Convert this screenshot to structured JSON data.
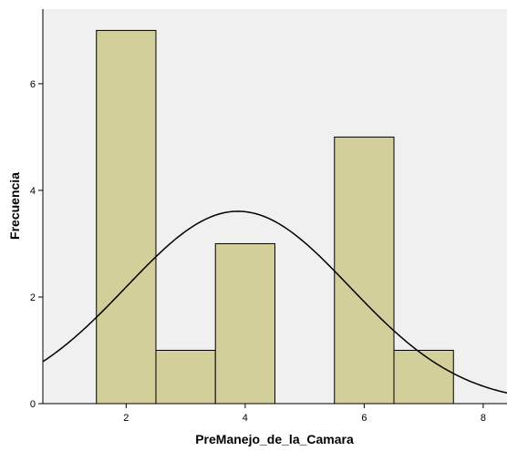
{
  "chart_data": {
    "type": "bar",
    "subtype": "histogram-with-normal-curve",
    "xlabel": "PreManejo_de_la_Camara",
    "ylabel": "Frecuencia",
    "xlim": [
      0.6,
      8.4
    ],
    "ylim": [
      0,
      7.4
    ],
    "x_ticks": [
      2,
      4,
      6,
      8
    ],
    "y_ticks": [
      0,
      2,
      4,
      6
    ],
    "bins": [
      {
        "from": 1.5,
        "to": 2.5,
        "count": 7
      },
      {
        "from": 2.5,
        "to": 3.5,
        "count": 1
      },
      {
        "from": 3.5,
        "to": 4.5,
        "count": 3
      },
      {
        "from": 4.5,
        "to": 5.5,
        "count": 0
      },
      {
        "from": 5.5,
        "to": 6.5,
        "count": 5
      },
      {
        "from": 6.5,
        "to": 7.5,
        "count": 1
      }
    ],
    "normal_curve": {
      "mean": 3.88,
      "sd": 1.88,
      "n": 17,
      "bin_width": 1
    },
    "colors": {
      "bar_fill": "#d3cf9b",
      "bar_stroke": "#000000",
      "plot_background": "#f0f0f0",
      "curve": "#000000"
    }
  }
}
